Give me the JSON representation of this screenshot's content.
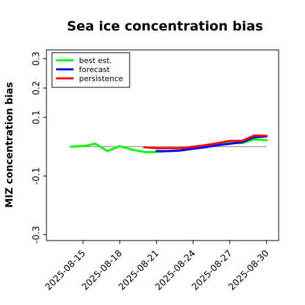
{
  "chart_data": {
    "type": "line",
    "title": "Sea ice concentration bias",
    "ylabel": "MIZ concentration bias",
    "xlabel": "",
    "ylim": [
      -0.32,
      0.33
    ],
    "xlim": [
      "2025-08-12",
      "2025-08-31"
    ],
    "yticks": [
      -0.3,
      -0.1,
      0.1,
      0.2,
      0.3
    ],
    "ytick_labels": [
      "-0.3",
      "-0.1",
      "0.1",
      "0.2",
      "0.3"
    ],
    "xticks": [
      "2025-08-15",
      "2025-08-18",
      "2025-08-21",
      "2025-08-24",
      "2025-08-27",
      "2025-08-30"
    ],
    "xtick_labels": [
      "2025-08-15",
      "2025-08-18",
      "2025-08-21",
      "2025-08-24",
      "2025-08-27",
      "2025-08-30"
    ],
    "highlight_tick": "2025-08-21",
    "highlight_color": "#228b22",
    "zero_line": 0,
    "legend_position": "top-left",
    "series": [
      {
        "name": "best est.",
        "color": "#00ff00",
        "x": [
          "2025-08-14",
          "2025-08-15",
          "2025-08-16",
          "2025-08-17",
          "2025-08-18",
          "2025-08-19",
          "2025-08-20",
          "2025-08-21",
          "2025-08-22",
          "2025-08-23",
          "2025-08-24",
          "2025-08-25",
          "2025-08-26",
          "2025-08-27",
          "2025-08-28",
          "2025-08-29",
          "2025-08-30"
        ],
        "values": [
          0.0,
          0.002,
          0.01,
          -0.015,
          0.002,
          -0.01,
          -0.018,
          -0.018,
          -0.015,
          -0.012,
          -0.005,
          0.0,
          0.008,
          0.012,
          0.012,
          0.025,
          0.022
        ]
      },
      {
        "name": "forecast",
        "color": "#0000ff",
        "x": [
          "2025-08-21",
          "2025-08-22",
          "2025-08-23",
          "2025-08-24",
          "2025-08-25",
          "2025-08-26",
          "2025-08-27",
          "2025-08-28",
          "2025-08-29",
          "2025-08-30"
        ],
        "values": [
          -0.015,
          -0.015,
          -0.013,
          -0.007,
          -0.002,
          0.005,
          0.01,
          0.015,
          0.032,
          0.035
        ]
      },
      {
        "name": "persistence",
        "color": "#ff0000",
        "x": [
          "2025-08-20",
          "2025-08-21",
          "2025-08-22",
          "2025-08-23",
          "2025-08-24",
          "2025-08-25",
          "2025-08-26",
          "2025-08-27",
          "2025-08-28",
          "2025-08-29",
          "2025-08-30"
        ],
        "values": [
          -0.002,
          -0.005,
          -0.005,
          -0.005,
          0.0,
          0.005,
          0.012,
          0.02,
          0.02,
          0.038,
          0.037
        ]
      }
    ]
  }
}
